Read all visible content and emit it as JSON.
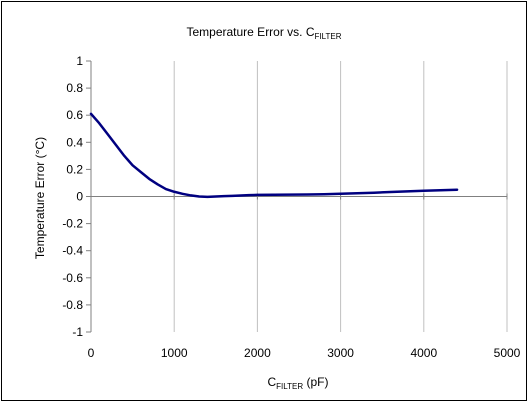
{
  "chart_data": {
    "type": "line",
    "title": {
      "main": "Temperature Error vs. C",
      "sub": "FILTER"
    },
    "xlabel": {
      "main": "C",
      "sub": "FILTER",
      "suffix": " (pF)"
    },
    "ylabel": "Temperature Error (°C)",
    "xlim": [
      0,
      5000
    ],
    "ylim": [
      -1,
      1
    ],
    "x_ticks": [
      0,
      1000,
      2000,
      3000,
      4000,
      5000
    ],
    "y_ticks": [
      1,
      0.8,
      0.6,
      0.4,
      0.2,
      0,
      -0.2,
      -0.4,
      -0.6,
      -0.8,
      -1
    ],
    "x_tick_labels": [
      "0",
      "1000",
      "2000",
      "3000",
      "4000",
      "5000"
    ],
    "y_tick_labels": [
      "1",
      "0.8",
      "0.6",
      "0.4",
      "0.2",
      "0",
      "-0.2",
      "-0.4",
      "-0.6",
      "-0.8",
      "-1"
    ],
    "grid": "vertical",
    "legend": "none",
    "line_color": "#000080",
    "series": [
      {
        "x": [
          0,
          100,
          200,
          300,
          400,
          500,
          600,
          700,
          800,
          900,
          1000,
          1100,
          1200,
          1300,
          1400,
          1500,
          1600,
          1700,
          1800,
          1900,
          2000,
          2200,
          2400,
          2600,
          2800,
          3000,
          3200,
          3400,
          3600,
          3800,
          4000,
          4200,
          4400
        ],
        "y": [
          0.61,
          0.54,
          0.46,
          0.38,
          0.3,
          0.23,
          0.18,
          0.13,
          0.09,
          0.055,
          0.035,
          0.02,
          0.008,
          0.0,
          -0.003,
          0.0,
          0.003,
          0.005,
          0.007,
          0.01,
          0.012,
          0.013,
          0.014,
          0.015,
          0.017,
          0.02,
          0.024,
          0.028,
          0.033,
          0.038,
          0.042,
          0.046,
          0.05
        ]
      }
    ]
  }
}
